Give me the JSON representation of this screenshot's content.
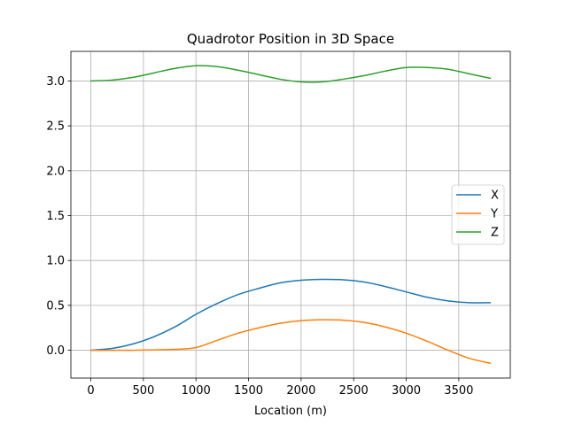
{
  "chart_data": {
    "type": "line",
    "title": "Quadrotor Position in 3D Space",
    "xlabel": "Location (m)",
    "ylabel": "",
    "xlim": [
      -190,
      3990
    ],
    "ylim": [
      -0.31,
      3.33
    ],
    "xticks": [
      0,
      500,
      1000,
      1500,
      2000,
      2500,
      3000,
      3500
    ],
    "xtick_labels": [
      "0",
      "500",
      "1000",
      "1500",
      "2000",
      "2500",
      "3000",
      "3500"
    ],
    "yticks": [
      0.0,
      0.5,
      1.0,
      1.5,
      2.0,
      2.5,
      3.0
    ],
    "ytick_labels": [
      "0.0",
      "0.5",
      "1.0",
      "1.5",
      "2.0",
      "2.5",
      "3.0"
    ],
    "grid": true,
    "legend_position": "center-right",
    "series": [
      {
        "name": "X",
        "color": "#1f77b4",
        "x": [
          0,
          200,
          400,
          600,
          800,
          1000,
          1200,
          1400,
          1600,
          1800,
          2000,
          2200,
          2400,
          2600,
          2800,
          3000,
          3200,
          3400,
          3600,
          3800
        ],
        "y": [
          0.0,
          0.02,
          0.07,
          0.15,
          0.26,
          0.4,
          0.52,
          0.62,
          0.69,
          0.75,
          0.78,
          0.79,
          0.785,
          0.76,
          0.71,
          0.65,
          0.59,
          0.55,
          0.53,
          0.53
        ]
      },
      {
        "name": "Y",
        "color": "#ff7f0e",
        "x": [
          0,
          200,
          400,
          600,
          800,
          1000,
          1200,
          1400,
          1600,
          1800,
          2000,
          2200,
          2400,
          2600,
          2800,
          3000,
          3200,
          3400,
          3600,
          3800
        ],
        "y": [
          0.0,
          0.0,
          0.0,
          0.005,
          0.01,
          0.03,
          0.11,
          0.19,
          0.25,
          0.3,
          0.33,
          0.34,
          0.335,
          0.31,
          0.26,
          0.19,
          0.1,
          0.0,
          -0.09,
          -0.145
        ]
      },
      {
        "name": "Z",
        "color": "#2ca02c",
        "x": [
          0,
          200,
          400,
          600,
          800,
          1000,
          1200,
          1400,
          1600,
          1800,
          2000,
          2200,
          2400,
          2600,
          2800,
          3000,
          3200,
          3400,
          3600,
          3800
        ],
        "y": [
          3.0,
          3.01,
          3.04,
          3.09,
          3.14,
          3.17,
          3.16,
          3.12,
          3.07,
          3.02,
          2.99,
          2.99,
          3.02,
          3.06,
          3.11,
          3.15,
          3.15,
          3.13,
          3.08,
          3.03
        ]
      }
    ]
  }
}
